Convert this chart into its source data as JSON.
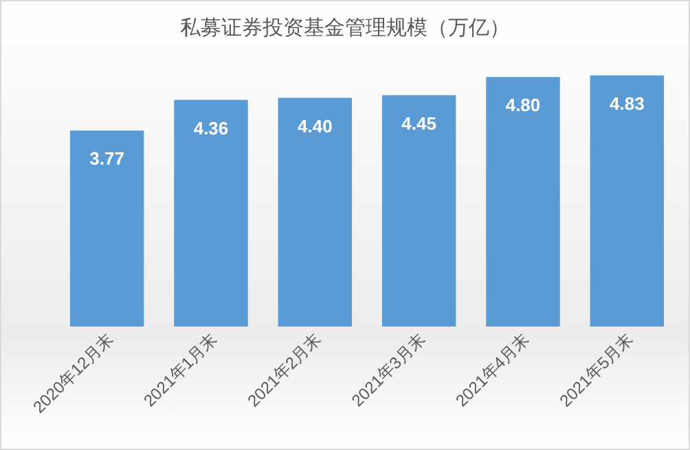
{
  "chart_data": {
    "type": "bar",
    "title": "私募证券投资基金管理规模（万亿）",
    "categories": [
      "2020年12月末",
      "2021年1月末",
      "2021年2月末",
      "2021年3月末",
      "2021年4月末",
      "2021年5月末"
    ],
    "series": [
      {
        "color": "#5b9bd5",
        "values": [
          3.77,
          4.36,
          4.4,
          4.45,
          4.8,
          4.83
        ],
        "value_labels": [
          "3.77",
          "4.36",
          "4.40",
          "4.45",
          "4.80",
          "4.83"
        ]
      }
    ]
  }
}
